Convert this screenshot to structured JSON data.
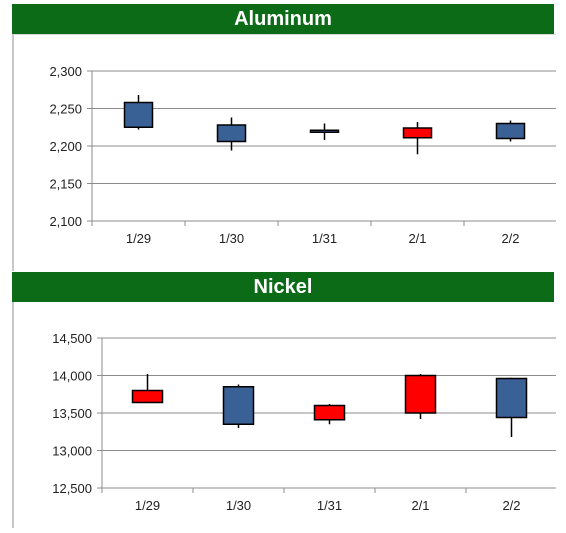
{
  "chart_data": [
    {
      "type": "candlestick",
      "title": "Aluminum",
      "categories": [
        "1/29",
        "1/30",
        "1/31",
        "2/1",
        "2/2"
      ],
      "ylim": [
        2100,
        2300
      ],
      "yticks": [
        "2,100",
        "2,150",
        "2,200",
        "2,250",
        "2,300"
      ],
      "grid": true,
      "series": [
        {
          "open": 2225,
          "close": 2258,
          "high": 2268,
          "low": 2222
        },
        {
          "open": 2206,
          "close": 2228,
          "high": 2238,
          "low": 2194
        },
        {
          "open": 2219,
          "close": 2221,
          "high": 2230,
          "low": 2208
        },
        {
          "open": 2224,
          "close": 2211,
          "high": 2232,
          "low": 2189
        },
        {
          "open": 2210,
          "close": 2230,
          "high": 2234,
          "low": 2206
        }
      ],
      "colors": {
        "up": "#3a6195",
        "down": "#ff0000",
        "grid": "#8c8c8c"
      }
    },
    {
      "type": "candlestick",
      "title": "Nickel",
      "categories": [
        "1/29",
        "1/30",
        "1/31",
        "2/1",
        "2/2"
      ],
      "ylim": [
        12500,
        14500
      ],
      "yticks": [
        "12,500",
        "13,000",
        "13,500",
        "14,000",
        "14,500"
      ],
      "grid": true,
      "series": [
        {
          "open": 13800,
          "close": 13640,
          "high": 14020,
          "low": 13640
        },
        {
          "open": 13350,
          "close": 13850,
          "high": 13880,
          "low": 13300
        },
        {
          "open": 13600,
          "close": 13410,
          "high": 13620,
          "low": 13350
        },
        {
          "open": 14000,
          "close": 13500,
          "high": 14020,
          "low": 13420
        },
        {
          "open": 13440,
          "close": 13960,
          "high": 13970,
          "low": 13180
        }
      ],
      "colors": {
        "up": "#3a6195",
        "down": "#ff0000",
        "grid": "#8c8c8c"
      }
    }
  ]
}
